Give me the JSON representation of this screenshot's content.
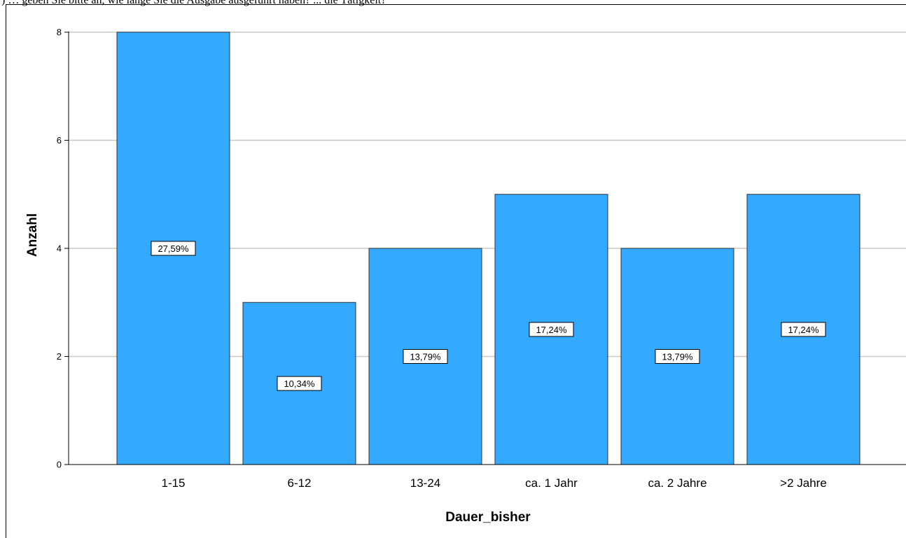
{
  "caption": ") … geben Sie bitte an, wie lange Sie die Ausgabe ausgeführt haben? ... die Tätigkeit?",
  "chart_data": {
    "type": "bar",
    "title": "",
    "xlabel": "Dauer_bisher",
    "ylabel": "Anzahl",
    "categories": [
      "1-15",
      "6-12",
      "13-24",
      "ca. 1 Jahr",
      "ca. 2 Jahre",
      ">2 Jahre"
    ],
    "values": [
      8,
      3,
      4,
      5,
      4,
      5
    ],
    "data_labels": [
      "27,59%",
      "10,34%",
      "13,79%",
      "17,24%",
      "13,79%",
      "17,24%"
    ],
    "ylim": [
      0,
      8
    ],
    "yticks": [
      "0",
      "2",
      "4",
      "6",
      "8"
    ],
    "grid": true,
    "bar_color": "#33aaff",
    "grid_color": "#c8c8c8"
  }
}
